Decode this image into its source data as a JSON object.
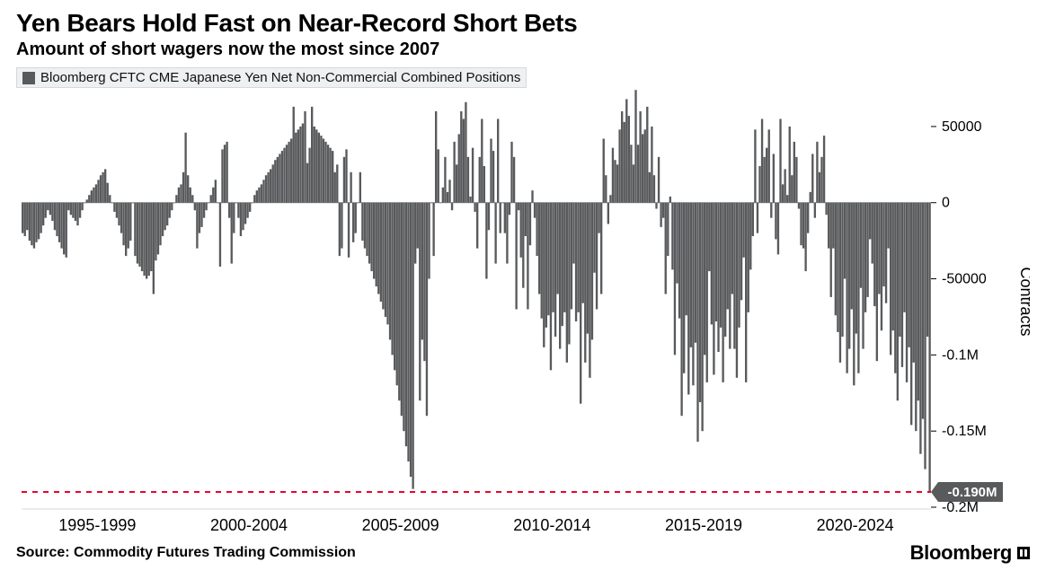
{
  "title": "Yen Bears Hold Fast on Near-Record Short Bets",
  "subtitle": "Amount of short wagers now the most since 2007",
  "legend_label": "Bloomberg CFTC CME Japanese Yen Net Non-Commercial Combined Positions",
  "source_label": "Source: Commodity Futures Trading Commission",
  "brand_label": "Bloomberg",
  "chart": {
    "type": "bar",
    "bar_color": "#585a5c",
    "background_color": "#ffffff",
    "grid_color": "#d6d8da",
    "baseline_color": "#8a8c8e",
    "reference_line": {
      "value": -190000,
      "color": "#e6042f",
      "dash": "6,6",
      "callout": "-0.190M"
    },
    "yaxis": {
      "title": "Contracts",
      "min": -200000,
      "max": 70000,
      "ticks": [
        {
          "v": 50000,
          "label": "50000"
        },
        {
          "v": 0,
          "label": "0"
        },
        {
          "v": -50000,
          "label": "-50000"
        },
        {
          "v": -100000,
          "label": "-0.1M"
        },
        {
          "v": -150000,
          "label": "-0.15M"
        },
        {
          "v": -200000,
          "label": "-0.2M"
        }
      ]
    },
    "xaxis": {
      "labels": [
        "1995-1999",
        "2000-2004",
        "2005-2009",
        "2010-2014",
        "2015-2019",
        "2020-2024"
      ]
    },
    "values": [
      -20000,
      -22000,
      -18000,
      -25000,
      -28000,
      -30000,
      -26000,
      -24000,
      -20000,
      -15000,
      -10000,
      -5000,
      -8000,
      -12000,
      -18000,
      -22000,
      -26000,
      -30000,
      -34000,
      -36000,
      -5000,
      -8000,
      -10000,
      -12000,
      -15000,
      -10000,
      -5000,
      0,
      2000,
      5000,
      8000,
      10000,
      12000,
      15000,
      18000,
      20000,
      22000,
      13000,
      5000,
      0,
      -6000,
      -10000,
      -15000,
      -20000,
      -28000,
      -35000,
      -30000,
      -25000,
      0,
      -35000,
      -40000,
      -42000,
      -45000,
      -48000,
      -50000,
      -48000,
      -45000,
      -60000,
      -38000,
      -34000,
      -28000,
      -22000,
      -18000,
      -15000,
      -10000,
      -5000,
      0,
      5000,
      10000,
      12000,
      20000,
      46000,
      18000,
      10000,
      5000,
      -5000,
      -30000,
      -20000,
      -16000,
      -10000,
      -5000,
      0,
      5000,
      10000,
      15000,
      0,
      -42000,
      35000,
      38000,
      40000,
      -10000,
      -40000,
      -20000,
      0,
      -10000,
      -22000,
      -18000,
      -14000,
      -10000,
      -6000,
      0,
      5000,
      8000,
      10000,
      12000,
      15000,
      18000,
      20000,
      22000,
      25000,
      28000,
      30000,
      32000,
      34000,
      36000,
      38000,
      40000,
      42000,
      63000,
      46000,
      48000,
      50000,
      52000,
      60000,
      26000,
      36000,
      63000,
      50000,
      48000,
      46000,
      44000,
      42000,
      40000,
      38000,
      36000,
      34000,
      20000,
      25000,
      -35000,
      -30000,
      30000,
      35000,
      -36000,
      20000,
      -26000,
      -20000,
      0,
      20000,
      -25000,
      -30000,
      -35000,
      -40000,
      -45000,
      -50000,
      -55000,
      -60000,
      -65000,
      -70000,
      -75000,
      -80000,
      -90000,
      -100000,
      -110000,
      -120000,
      -130000,
      -140000,
      -150000,
      -160000,
      -170000,
      -180000,
      -188000,
      -40000,
      -30000,
      -130000,
      -90000,
      -104000,
      -140000,
      -50000,
      0,
      -35000,
      60000,
      35000,
      0,
      10000,
      30000,
      7000,
      15000,
      -5000,
      40000,
      25000,
      45000,
      60000,
      55000,
      66000,
      30000,
      4000,
      36000,
      -6000,
      -30000,
      30000,
      55000,
      24000,
      -50000,
      -18000,
      42000,
      34000,
      -40000,
      55000,
      -20000,
      0,
      -20000,
      -40000,
      -8000,
      40000,
      30000,
      -70000,
      -5000,
      -36000,
      -56000,
      -22000,
      -70000,
      -28000,
      8000,
      -10000,
      -35000,
      -60000,
      -76000,
      -95000,
      -82000,
      -74000,
      -110000,
      -72000,
      -88000,
      -60000,
      -96000,
      -81000,
      -72000,
      -105000,
      -93000,
      -70000,
      -40000,
      -78000,
      -72000,
      -132000,
      -66000,
      -105000,
      -86000,
      -115000,
      -90000,
      -46000,
      -70000,
      -20000,
      -60000,
      42000,
      18000,
      -14000,
      5000,
      36000,
      28000,
      25000,
      48000,
      60000,
      53000,
      68000,
      57000,
      38000,
      25000,
      74000,
      38000,
      60000,
      45000,
      48000,
      63000,
      20000,
      50000,
      18000,
      -4000,
      30000,
      -16000,
      -10000,
      -60000,
      -35000,
      4000,
      -44000,
      -100000,
      -53000,
      -76000,
      -140000,
      -112000,
      -74000,
      -126000,
      -95000,
      -120000,
      -92000,
      -157000,
      -131000,
      -150000,
      -100000,
      -118000,
      -45000,
      -80000,
      -113000,
      -78000,
      -98000,
      -82000,
      -118000,
      -88000,
      -70000,
      -96000,
      -60000,
      -96000,
      -115000,
      -82000,
      -64000,
      -36000,
      -118000,
      -72000,
      -44000,
      -22000,
      48000,
      -20000,
      24000,
      55000,
      30000,
      36000,
      48000,
      -10000,
      32000,
      -24000,
      -34000,
      55000,
      12000,
      22000,
      5000,
      50000,
      18000,
      40000,
      30000,
      -4000,
      -28000,
      -30000,
      -45000,
      -20000,
      7000,
      32000,
      -10000,
      40000,
      20000,
      30000,
      44000,
      -8000,
      -30000,
      -62000,
      -30000,
      -74000,
      -85000,
      -105000,
      -88000,
      -50000,
      -112000,
      -96000,
      -70000,
      -120000,
      -86000,
      -112000,
      -56000,
      -96000,
      -72000,
      -62000,
      -24000,
      -40000,
      -68000,
      -104000,
      -60000,
      -84000,
      -55000,
      -66000,
      -30000,
      -100000,
      -84000,
      -112000,
      -130000,
      -88000,
      -108000,
      -72000,
      -118000,
      -95000,
      -146000,
      -105000,
      -150000,
      -130000,
      -165000,
      -142000,
      -175000,
      -88000,
      -190000
    ]
  }
}
